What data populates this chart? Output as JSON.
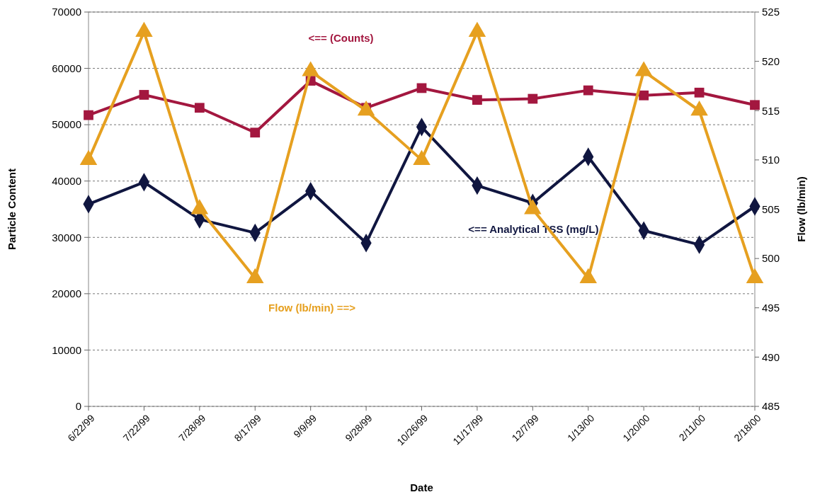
{
  "chart_data": {
    "type": "line",
    "xlabel": "Date",
    "ylabel": "Particle Content",
    "y2label": "Flow (lb/min)",
    "categories": [
      "6/22/99",
      "7/22/99",
      "7/28/99",
      "8/17/99",
      "9/9/99",
      "9/28/99",
      "10/26/99",
      "11/17/99",
      "12/7/99",
      "1/13/00",
      "1/20/00",
      "2/11/00",
      "2/18/00"
    ],
    "series": [
      {
        "name": "<== (Counts)",
        "color": "#a3173f",
        "marker": "square",
        "values": [
          51700,
          55300,
          53000,
          48600,
          57800,
          53000,
          56500,
          54400,
          54600,
          56100,
          55200,
          55700,
          53500
        ]
      },
      {
        "name": "<== Analytical TSS (mg/L)",
        "color": "#101640",
        "marker": "diamond",
        "values": [
          35900,
          39800,
          33200,
          30800,
          38200,
          29000,
          49600,
          39200,
          36100,
          44300,
          31200,
          28700,
          35500
        ]
      },
      {
        "name": "Flow (lb/min) ==>",
        "color": "#e6a020",
        "marker": "triangle",
        "axis": "y2",
        "values": [
          510,
          523,
          505,
          498,
          519,
          515,
          510,
          523,
          505,
          498,
          519,
          515,
          498
        ]
      }
    ],
    "ylim": [
      0,
      70000
    ],
    "yticks": [
      0,
      10000,
      20000,
      30000,
      40000,
      50000,
      60000,
      70000
    ],
    "y2lim": [
      485,
      525
    ],
    "y2ticks": [
      485,
      490,
      495,
      500,
      505,
      510,
      515,
      520,
      525
    ],
    "grid": "y",
    "line_style": "solid"
  }
}
